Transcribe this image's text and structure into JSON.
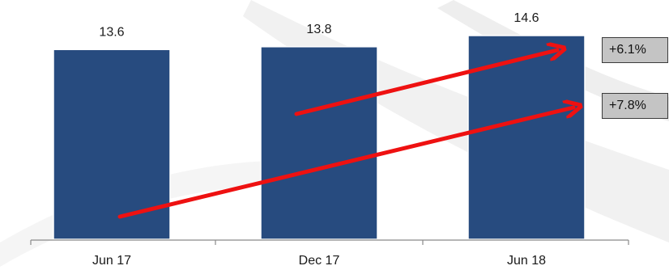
{
  "chart_data": {
    "type": "bar",
    "categories": [
      "Jun 17",
      "Dec 17",
      "Jun 18"
    ],
    "values": [
      13.6,
      13.8,
      14.6
    ],
    "value_labels": [
      "13.6",
      "13.8",
      "14.6"
    ],
    "title": "",
    "xlabel": "",
    "ylabel": "",
    "ylim": [
      0,
      14.6
    ],
    "grid": false,
    "bar_color": "#274b7f",
    "annotations": [
      {
        "text": "+6.1%",
        "from": "Dec 17",
        "to": "Jun 18"
      },
      {
        "text": "+7.8%",
        "from": "Jun 17",
        "to": "Jun 18"
      }
    ],
    "arrow_color": "#ee1111"
  },
  "badges": {
    "growth_6m": "+6.1%",
    "growth_12m": "+7.8%"
  }
}
